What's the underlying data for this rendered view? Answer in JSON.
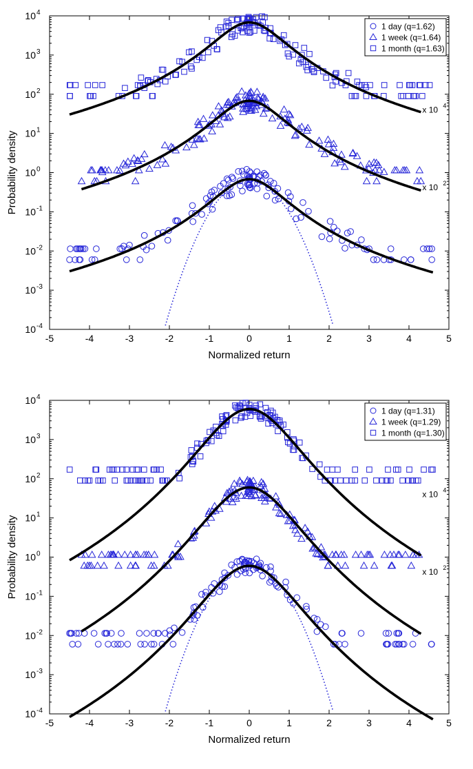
{
  "colors": {
    "marker": "#2424d8",
    "fit": "#000000",
    "gaussian": "#2424d8",
    "axis": "#000000"
  },
  "chart_data": [
    {
      "type": "scatter",
      "xlabel": "Normalized return",
      "ylabel": "Probability density",
      "xlim": [
        -5,
        5
      ],
      "ylim": [
        0.0001,
        10000
      ],
      "yscale": "log",
      "xticks": [
        "-5",
        "-4",
        "-3",
        "-2",
        "-1",
        "0",
        "1",
        "2",
        "3",
        "4",
        "5"
      ],
      "yticks": [
        {
          "base": "10",
          "exp": "-4"
        },
        {
          "base": "10",
          "exp": "-3"
        },
        {
          "base": "10",
          "exp": "-2"
        },
        {
          "base": "10",
          "exp": "-1"
        },
        {
          "base": "10",
          "exp": "0"
        },
        {
          "base": "10",
          "exp": "1"
        },
        {
          "base": "10",
          "exp": "2"
        },
        {
          "base": "10",
          "exp": "3"
        },
        {
          "base": "10",
          "exp": "4"
        }
      ],
      "legend_position": "top-right",
      "annotations": [
        {
          "base": "x 10",
          "exp": "4",
          "x": 4.3,
          "y": 40
        },
        {
          "base": "x 10",
          "exp": "2",
          "x": 4.3,
          "y": 0.42
        }
      ],
      "fit_peak": 0.68,
      "fit_q": 1.62,
      "series": [
        {
          "name": "1 day (q=1.62)",
          "marker": "circle",
          "scale": 1,
          "noise": 0.55,
          "q": 1.62,
          "seed": 11
        },
        {
          "name": "1 week (q=1.64)",
          "marker": "triangle",
          "scale": 100,
          "noise": 0.55,
          "q": 1.64,
          "seed": 23
        },
        {
          "name": "1 month (q=1.63)",
          "marker": "square",
          "scale": 10000,
          "noise": 0.55,
          "q": 1.63,
          "seed": 37
        }
      ],
      "fits": [
        {
          "scale": 1,
          "q": 1.62,
          "x": [
            -4.5,
            4.6
          ]
        },
        {
          "scale": 100,
          "q": 1.62,
          "x": [
            -4.2,
            4.3
          ]
        },
        {
          "scale": 10000,
          "q": 1.62,
          "x": [
            -4.5,
            4.3
          ]
        }
      ],
      "gaussian": {
        "peak": 0.65,
        "sigma": 0.7,
        "x": [
          -2.65,
          2.65
        ]
      }
    },
    {
      "type": "scatter",
      "xlabel": "Normalized return",
      "ylabel": "Probability density",
      "xlim": [
        -5,
        5
      ],
      "ylim": [
        0.0001,
        10000
      ],
      "yscale": "log",
      "xticks": [
        "-5",
        "-4",
        "-3",
        "-2",
        "-1",
        "0",
        "1",
        "2",
        "3",
        "4",
        "5"
      ],
      "yticks": [
        {
          "base": "10",
          "exp": "-4"
        },
        {
          "base": "10",
          "exp": "-3"
        },
        {
          "base": "10",
          "exp": "-2"
        },
        {
          "base": "10",
          "exp": "-1"
        },
        {
          "base": "10",
          "exp": "0"
        },
        {
          "base": "10",
          "exp": "1"
        },
        {
          "base": "10",
          "exp": "2"
        },
        {
          "base": "10",
          "exp": "3"
        },
        {
          "base": "10",
          "exp": "4"
        }
      ],
      "legend_position": "top-right",
      "annotations": [
        {
          "base": "x 10",
          "exp": "4",
          "x": 4.3,
          "y": 40
        },
        {
          "base": "x 10",
          "exp": "2",
          "x": 4.3,
          "y": 0.42
        }
      ],
      "fit_peak": 0.6,
      "fit_q": 1.3,
      "series": [
        {
          "name": "1 day (q=1.31)",
          "marker": "circle",
          "scale": 1,
          "noise": 0.45,
          "q": 1.31,
          "seed": 5
        },
        {
          "name": "1 week (q=1.29)",
          "marker": "triangle",
          "scale": 100,
          "noise": 0.45,
          "q": 1.29,
          "seed": 17
        },
        {
          "name": "1 month (q=1.30)",
          "marker": "square",
          "scale": 10000,
          "noise": 0.45,
          "q": 1.3,
          "seed": 29
        }
      ],
      "fits": [
        {
          "scale": 1,
          "q": 1.3,
          "x": [
            -4.5,
            4.6
          ]
        },
        {
          "scale": 100,
          "q": 1.3,
          "x": [
            -4.2,
            4.3
          ]
        },
        {
          "scale": 10000,
          "q": 1.3,
          "x": [
            -4.5,
            4.3
          ]
        }
      ],
      "gaussian": {
        "peak": 0.6,
        "sigma": 0.7,
        "x": [
          -2.65,
          2.65
        ]
      }
    }
  ]
}
